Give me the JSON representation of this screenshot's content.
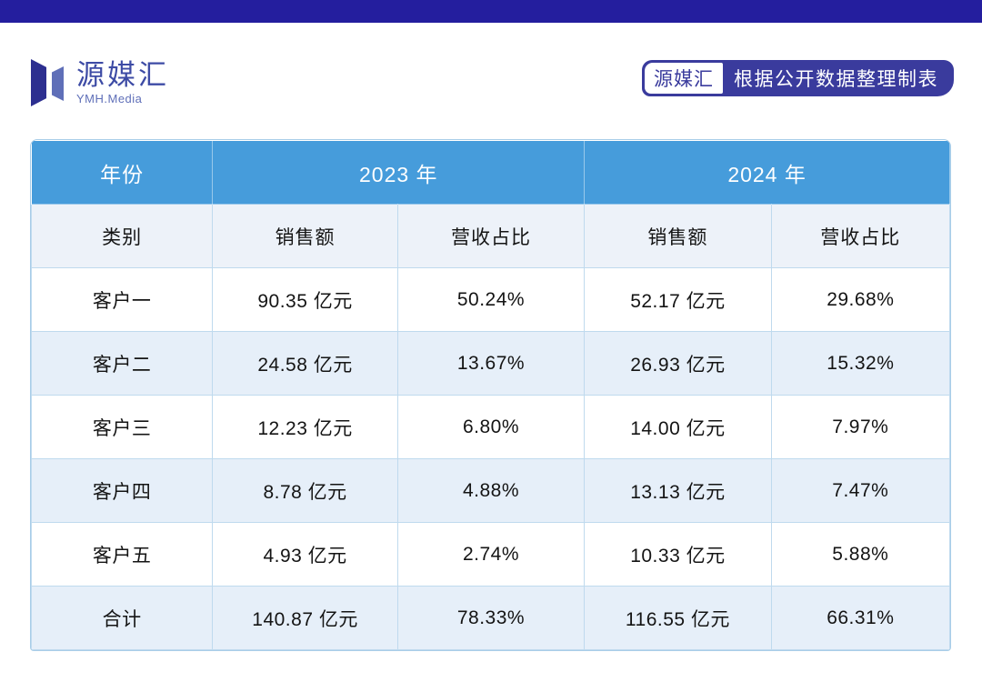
{
  "colors": {
    "topbar": "#241E9E",
    "badge_navy": "#3A3B9D",
    "header_blue": "#469CDB",
    "row_alt": "#E6EFF9",
    "subheader_bg": "#EDF2F9",
    "border": "#BFDAEE",
    "outer_border": "#A8CDE8",
    "text_dark": "#141414",
    "logo_dark": "#2D2F90",
    "logo_light": "#5F6FB8",
    "brand_blue": "#3D4BA5"
  },
  "brand": {
    "name": "源媒汇",
    "subtitle": "YMH.Media"
  },
  "badge": {
    "brand": "源媒汇",
    "note": "根据公开数据整理制表"
  },
  "table": {
    "year_col_label": "年份",
    "years": [
      "2023 年",
      "2024 年"
    ],
    "category_label": "类别",
    "subheaders": [
      "销售额",
      "营收占比",
      "销售额",
      "营收占比"
    ],
    "rows": [
      {
        "label": "客户一",
        "cells": [
          "90.35 亿元",
          "50.24%",
          "52.17 亿元",
          "29.68%"
        ]
      },
      {
        "label": "客户二",
        "cells": [
          "24.58 亿元",
          "13.67%",
          "26.93 亿元",
          "15.32%"
        ]
      },
      {
        "label": "客户三",
        "cells": [
          "12.23 亿元",
          "6.80%",
          "14.00 亿元",
          "7.97%"
        ]
      },
      {
        "label": "客户四",
        "cells": [
          "8.78 亿元",
          "4.88%",
          "13.13 亿元",
          "7.47%"
        ]
      },
      {
        "label": "客户五",
        "cells": [
          "4.93 亿元",
          "2.74%",
          "10.33 亿元",
          "5.88%"
        ]
      },
      {
        "label": "合计",
        "cells": [
          "140.87 亿元",
          "78.33%",
          "116.55 亿元",
          "66.31%"
        ],
        "is_total": true
      }
    ]
  },
  "chart_data": {
    "type": "table",
    "categories": [
      "客户一",
      "客户二",
      "客户三",
      "客户四",
      "客户五",
      "合计"
    ],
    "series": [
      {
        "name": "2023年 销售额(亿元)",
        "values": [
          90.35,
          24.58,
          12.23,
          8.78,
          4.93,
          140.87
        ]
      },
      {
        "name": "2023年 营收占比(%)",
        "values": [
          50.24,
          13.67,
          6.8,
          4.88,
          2.74,
          78.33
        ]
      },
      {
        "name": "2024年 销售额(亿元)",
        "values": [
          52.17,
          26.93,
          14.0,
          13.13,
          10.33,
          116.55
        ]
      },
      {
        "name": "2024年 营收占比(%)",
        "values": [
          29.68,
          15.32,
          7.97,
          7.47,
          5.88,
          66.31
        ]
      }
    ],
    "legend_position": "none",
    "grid": true
  }
}
